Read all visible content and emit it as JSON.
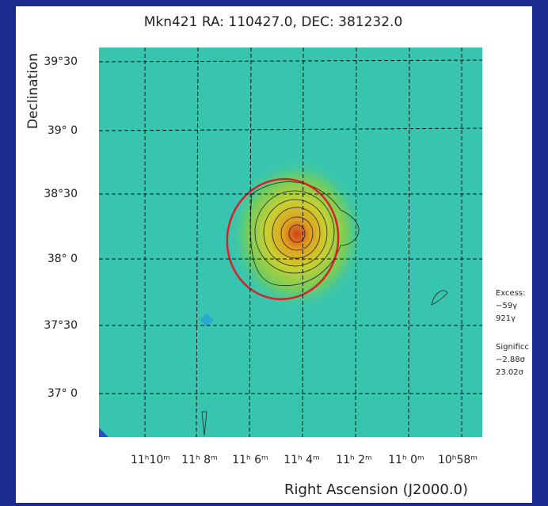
{
  "title": "Mkn421 RA: 110427.0, DEC: 381232.0",
  "x_axis": {
    "label": "Right Ascension (J2000.0)",
    "ticks": [
      "11ʰ10ᵐ",
      "11ʰ 8ᵐ",
      "11ʰ 6ᵐ",
      "11ʰ 4ᵐ",
      "11ʰ 2ᵐ",
      "11ʰ 0ᵐ",
      "10ʰ58ᵐ"
    ]
  },
  "y_axis": {
    "label": "Declination",
    "ticks": [
      "39°30",
      "39° 0",
      "38°30",
      "38° 0",
      "37°30",
      "37° 0"
    ]
  },
  "side_panel": {
    "excess_title": "Excess:",
    "excess_min": "−59γ",
    "excess_max": "921γ",
    "significance_title": "Significc",
    "significance_min": "−2.88σ",
    "significance_max": "23.02σ"
  }
}
